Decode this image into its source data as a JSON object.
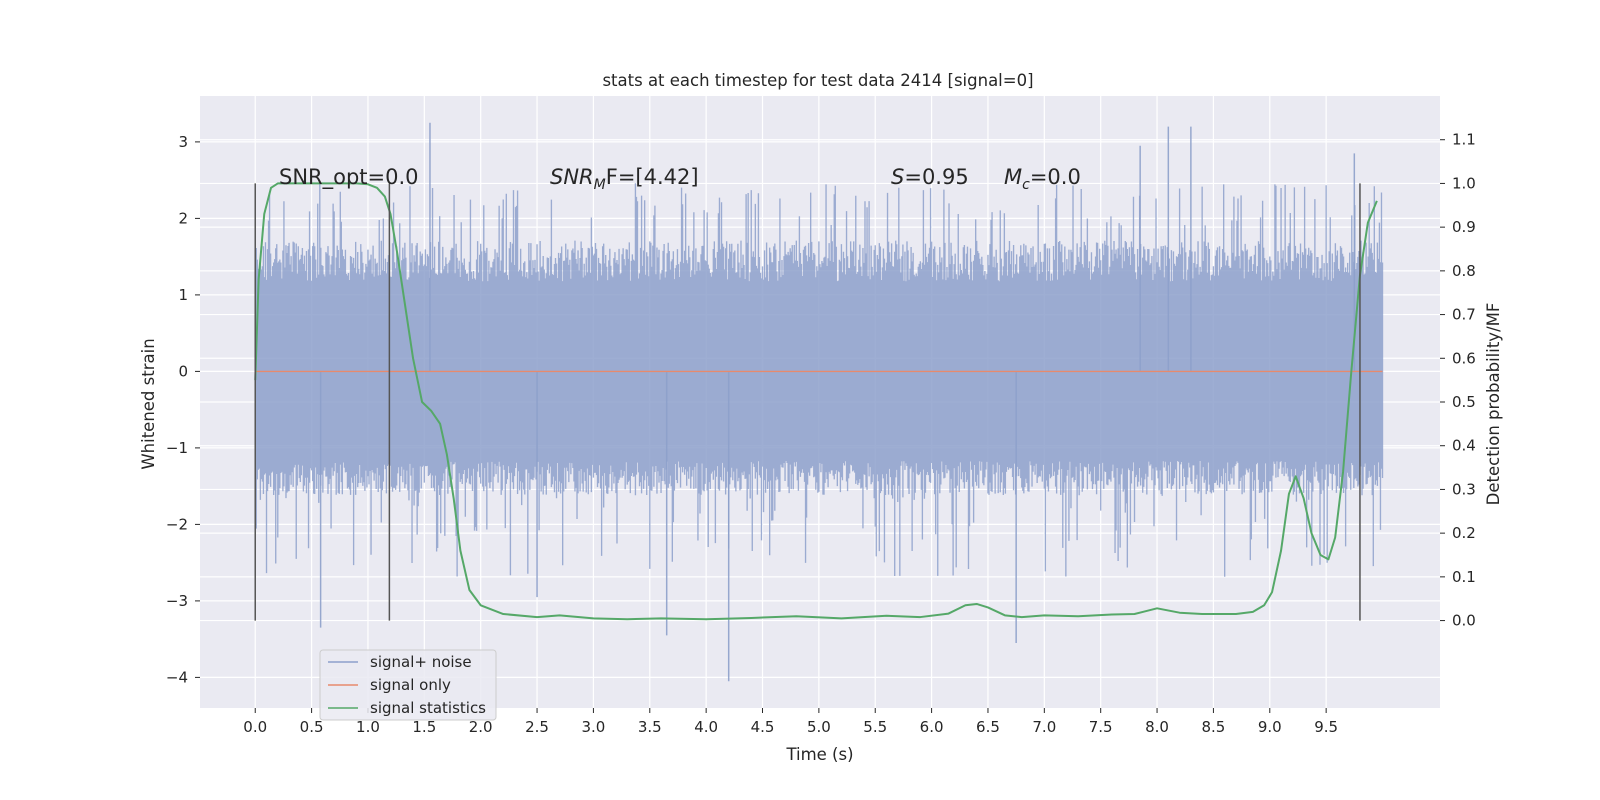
{
  "chart_data": {
    "type": "line",
    "title": "stats at each timestep for test data 2414 [signal=0]",
    "xlabel": "Time (s)",
    "ylabel": "Whitened strain",
    "y2label": "Detection probability/MF",
    "xlim": [
      -0.49,
      10.51
    ],
    "ylim": [
      -4.4,
      3.6
    ],
    "y2lim": [
      -0.2,
      1.2
    ],
    "x_ticks": [
      "0.0",
      "0.5",
      "1.0",
      "1.5",
      "2.0",
      "2.5",
      "3.0",
      "3.5",
      "4.0",
      "4.5",
      "5.0",
      "5.5",
      "6.0",
      "6.5",
      "7.0",
      "7.5",
      "8.0",
      "8.5",
      "9.0",
      "9.5"
    ],
    "y_ticks": [
      "3",
      "2",
      "1",
      "0",
      "−1",
      "−2",
      "−3",
      "−4"
    ],
    "y2_ticks": [
      "1.1",
      "1.0",
      "0.9",
      "0.8",
      "0.7",
      "0.6",
      "0.5",
      "0.4",
      "0.3",
      "0.2",
      "0.1",
      "0.0"
    ],
    "grid": true,
    "legend_position": "lower-left",
    "annotations": {
      "snr_opt": "SNR_opt=0.0",
      "snr_mf_base": "SNR",
      "snr_mf_sub": "M",
      "snr_mf_rest": "F=[4.42]",
      "s_label": "S",
      "s_value": "=0.95",
      "mc_base": "M",
      "mc_sub": "c",
      "mc_value": "=0.0"
    },
    "vertical_lines_x": [
      0.0,
      1.19,
      9.8
    ],
    "series": [
      {
        "name": "signal+ noise",
        "color": "#8da0cb",
        "x_range": [
          0.0,
          10.0
        ],
        "envelope_typical": [
          -1.5,
          1.9
        ],
        "spikes": [
          {
            "x": 1.55,
            "y": 3.25
          },
          {
            "x": 0.58,
            "y": -3.35
          },
          {
            "x": 2.5,
            "y": -2.95
          },
          {
            "x": 3.65,
            "y": -3.45
          },
          {
            "x": 4.2,
            "y": -4.05
          },
          {
            "x": 6.75,
            "y": -3.55
          },
          {
            "x": 8.1,
            "y": 3.2
          },
          {
            "x": 8.3,
            "y": 3.2
          },
          {
            "x": 9.75,
            "y": 2.85
          },
          {
            "x": 7.85,
            "y": 2.95
          }
        ]
      },
      {
        "name": "signal only",
        "color": "#e78a6d",
        "x": [
          0.0,
          10.0
        ],
        "y": [
          0.0,
          0.0
        ]
      },
      {
        "name": "signal statistics",
        "color": "#55a868",
        "axis": "right",
        "x": [
          0.0,
          0.03,
          0.08,
          0.14,
          0.2,
          0.3,
          0.5,
          0.7,
          0.9,
          1.0,
          1.08,
          1.15,
          1.2,
          1.26,
          1.33,
          1.4,
          1.48,
          1.56,
          1.64,
          1.7,
          1.76,
          1.82,
          1.9,
          2.0,
          2.2,
          2.5,
          2.7,
          3.0,
          3.3,
          3.6,
          4.0,
          4.4,
          4.8,
          5.2,
          5.6,
          5.9,
          6.15,
          6.3,
          6.4,
          6.5,
          6.65,
          6.8,
          7.0,
          7.3,
          7.6,
          7.8,
          8.0,
          8.2,
          8.4,
          8.7,
          8.85,
          8.95,
          9.02,
          9.1,
          9.17,
          9.23,
          9.3,
          9.37,
          9.45,
          9.52,
          9.58,
          9.65,
          9.72,
          9.8,
          9.87,
          9.95
        ],
        "y": [
          0.55,
          0.78,
          0.93,
          0.99,
          1.0,
          1.0,
          1.0,
          1.0,
          1.0,
          0.998,
          0.99,
          0.97,
          0.93,
          0.84,
          0.72,
          0.6,
          0.5,
          0.48,
          0.45,
          0.38,
          0.28,
          0.16,
          0.07,
          0.035,
          0.015,
          0.008,
          0.012,
          0.005,
          0.003,
          0.005,
          0.003,
          0.006,
          0.01,
          0.005,
          0.011,
          0.008,
          0.016,
          0.035,
          0.038,
          0.03,
          0.012,
          0.008,
          0.012,
          0.01,
          0.014,
          0.015,
          0.028,
          0.018,
          0.015,
          0.015,
          0.02,
          0.035,
          0.065,
          0.16,
          0.29,
          0.33,
          0.28,
          0.2,
          0.15,
          0.14,
          0.19,
          0.34,
          0.56,
          0.79,
          0.91,
          0.96
        ]
      }
    ]
  }
}
